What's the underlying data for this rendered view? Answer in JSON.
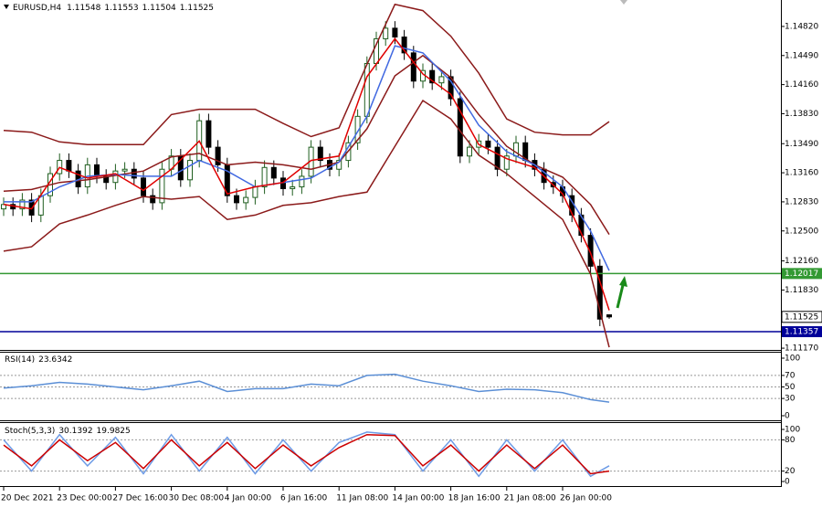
{
  "chart_data": [
    {
      "type": "candlestick",
      "title": "EURUSD,H4",
      "categories": [
        "20 Dec 2021",
        null,
        null,
        null,
        null,
        null,
        "23 Dec 00:00",
        null,
        null,
        null,
        null,
        null,
        "27 Dec 16:00",
        null,
        null,
        null,
        null,
        null,
        "30 Dec 08:00",
        null,
        null,
        null,
        null,
        null,
        "4 Jan 00:00",
        null,
        null,
        null,
        null,
        null,
        "6 Jan 16:00",
        null,
        null,
        null,
        null,
        null,
        "11 Jan 08:00",
        null,
        null,
        null,
        null,
        null,
        "14 Jan 00:00",
        null,
        null,
        null,
        null,
        null,
        "18 Jan 16:00",
        null,
        null,
        null,
        null,
        null,
        "21 Jan 08:00",
        null,
        null,
        null,
        null,
        null,
        "26 Jan 00:00",
        null,
        null,
        null,
        null,
        null
      ],
      "open": [
        1.1275,
        1.128,
        1.1275,
        1.1285,
        1.1268,
        1.129,
        1.1315,
        1.133,
        1.1318,
        1.13,
        1.1325,
        1.1312,
        1.1305,
        1.1318,
        1.132,
        1.131,
        1.129,
        1.1282,
        1.132,
        1.1335,
        1.1308,
        1.133,
        1.1375,
        1.1345,
        1.1325,
        1.129,
        1.1282,
        1.1288,
        1.13,
        1.1322,
        1.131,
        1.1298,
        1.13,
        1.1312,
        1.1345,
        1.133,
        1.132,
        1.133,
        1.135,
        1.138,
        1.144,
        1.1468,
        1.148,
        1.147,
        1.1452,
        1.142,
        1.1432,
        1.1418,
        1.1425,
        1.14,
        1.1335,
        1.1345,
        1.1352,
        1.1345,
        1.132,
        1.1335,
        1.135,
        1.133,
        1.132,
        1.1305,
        1.13,
        1.129,
        1.1268,
        1.1245,
        1.121,
        1.11548
      ],
      "high": [
        1.1288,
        1.1288,
        1.1293,
        1.1293,
        1.1298,
        1.1323,
        1.1338,
        1.1338,
        1.1326,
        1.1333,
        1.1333,
        1.132,
        1.1326,
        1.1328,
        1.1328,
        1.1318,
        1.1298,
        1.1328,
        1.1343,
        1.1343,
        1.1338,
        1.1383,
        1.1383,
        1.1353,
        1.1333,
        1.1298,
        1.1296,
        1.1308,
        1.133,
        1.133,
        1.1318,
        1.1308,
        1.132,
        1.1353,
        1.1353,
        1.1338,
        1.1338,
        1.1358,
        1.1388,
        1.1448,
        1.1476,
        1.1488,
        1.1488,
        1.1478,
        1.146,
        1.144,
        1.144,
        1.1433,
        1.1433,
        1.1408,
        1.1353,
        1.136,
        1.136,
        1.1353,
        1.1343,
        1.1358,
        1.1358,
        1.1338,
        1.1328,
        1.1313,
        1.1308,
        1.1298,
        1.1276,
        1.1253,
        1.1218,
        1.11553
      ],
      "low": [
        1.1267,
        1.1267,
        1.1267,
        1.126,
        1.126,
        1.1282,
        1.1307,
        1.131,
        1.1292,
        1.1292,
        1.1304,
        1.1297,
        1.1297,
        1.131,
        1.1302,
        1.1282,
        1.1274,
        1.1274,
        1.1312,
        1.13,
        1.13,
        1.1322,
        1.1337,
        1.1317,
        1.1282,
        1.1274,
        1.1274,
        1.128,
        1.1292,
        1.1302,
        1.129,
        1.129,
        1.1292,
        1.1304,
        1.1322,
        1.1312,
        1.1312,
        1.1322,
        1.1342,
        1.1372,
        1.1432,
        1.146,
        1.1462,
        1.1444,
        1.1412,
        1.1412,
        1.141,
        1.141,
        1.1392,
        1.1327,
        1.1327,
        1.1337,
        1.1337,
        1.1312,
        1.1312,
        1.1327,
        1.1322,
        1.1312,
        1.1297,
        1.1292,
        1.1282,
        1.126,
        1.1237,
        1.1202,
        1.1142,
        1.11504
      ],
      "close": [
        1.128,
        1.1275,
        1.1285,
        1.1268,
        1.129,
        1.1315,
        1.133,
        1.1318,
        1.13,
        1.1325,
        1.1312,
        1.1305,
        1.1318,
        1.132,
        1.131,
        1.129,
        1.1282,
        1.132,
        1.1335,
        1.1308,
        1.133,
        1.1375,
        1.1345,
        1.1325,
        1.129,
        1.1282,
        1.1288,
        1.13,
        1.1322,
        1.131,
        1.1298,
        1.13,
        1.1312,
        1.1345,
        1.133,
        1.132,
        1.133,
        1.135,
        1.138,
        1.144,
        1.1468,
        1.148,
        1.147,
        1.1452,
        1.142,
        1.1432,
        1.1418,
        1.1425,
        1.14,
        1.1335,
        1.1345,
        1.1352,
        1.1345,
        1.132,
        1.1335,
        1.135,
        1.133,
        1.132,
        1.1305,
        1.13,
        1.129,
        1.1268,
        1.1245,
        1.121,
        1.115,
        1.11525
      ],
      "up_color": "#1f5e1f",
      "down_color": "#000000",
      "series": [
        {
          "color": "#8b1a1a",
          "x": [
            0,
            3,
            6,
            9,
            12,
            15,
            18,
            21,
            24,
            27,
            30,
            33,
            36,
            39,
            42,
            45,
            48,
            51,
            54,
            57,
            60,
            63,
            65
          ],
          "values": [
            1.1364,
            1.1362,
            1.1351,
            1.1348,
            1.1348,
            1.1348,
            1.1382,
            1.1388,
            1.1388,
            1.1388,
            1.1372,
            1.1357,
            1.1367,
            1.1439,
            1.1507,
            1.15,
            1.1471,
            1.1429,
            1.1377,
            1.1362,
            1.1359,
            1.1359,
            1.1374
          ]
        },
        {
          "color": "#8b1a1a",
          "x": [
            0,
            3,
            6,
            9,
            12,
            15,
            18,
            21,
            24,
            27,
            30,
            33,
            36,
            39,
            42,
            45,
            48,
            51,
            54,
            57,
            60,
            63,
            65
          ],
          "values": [
            1.1295,
            1.1297,
            1.1305,
            1.1308,
            1.1313,
            1.1318,
            1.1334,
            1.1338,
            1.1325,
            1.1328,
            1.1325,
            1.132,
            1.1328,
            1.1366,
            1.1426,
            1.1449,
            1.1424,
            1.1382,
            1.1346,
            1.1325,
            1.1311,
            1.128,
            1.1246
          ]
        },
        {
          "color": "#8b1a1a",
          "x": [
            0,
            3,
            6,
            9,
            12,
            15,
            18,
            21,
            24,
            27,
            30,
            33,
            36,
            39,
            42,
            45,
            48,
            51,
            54,
            57,
            60,
            63,
            65
          ],
          "values": [
            1.1227,
            1.1232,
            1.1258,
            1.1268,
            1.1279,
            1.1289,
            1.1286,
            1.1289,
            1.1263,
            1.1268,
            1.1279,
            1.1282,
            1.1289,
            1.1294,
            1.1346,
            1.1398,
            1.1377,
            1.1336,
            1.1315,
            1.1289,
            1.1263,
            1.1201,
            1.1118
          ]
        },
        {
          "color": "#4169e1",
          "x": [
            0,
            3,
            6,
            9,
            12,
            15,
            18,
            21,
            24,
            27,
            30,
            33,
            36,
            39,
            42,
            45,
            48,
            51,
            54,
            57,
            60,
            63,
            65
          ],
          "values": [
            1.1283,
            1.1283,
            1.13,
            1.1312,
            1.1314,
            1.1312,
            1.1312,
            1.133,
            1.1318,
            1.13,
            1.1305,
            1.131,
            1.1328,
            1.138,
            1.146,
            1.1452,
            1.142,
            1.137,
            1.134,
            1.1325,
            1.13,
            1.125,
            1.1205
          ]
        },
        {
          "color": "#e00000",
          "x": [
            0,
            3,
            6,
            9,
            12,
            15,
            18,
            21,
            24,
            27,
            30,
            33,
            36,
            39,
            42,
            45,
            48,
            51,
            54,
            57,
            60,
            63,
            65
          ],
          "values": [
            1.128,
            1.1275,
            1.1322,
            1.131,
            1.1315,
            1.1296,
            1.132,
            1.1352,
            1.1292,
            1.13,
            1.1305,
            1.133,
            1.1335,
            1.1425,
            1.1468,
            1.1428,
            1.1405,
            1.1348,
            1.1332,
            1.1322,
            1.1292,
            1.1225,
            1.116
          ]
        }
      ],
      "levels": [
        {
          "value": 1.12017,
          "color": "#339933"
        },
        {
          "value": 1.11357,
          "color": "#000099"
        }
      ],
      "ylim": [
        1.1115,
        1.1512
      ],
      "yticks": [
        {
          "value": 1.1482,
          "label": "1.14820"
        },
        {
          "value": 1.1449,
          "label": "1.14490"
        },
        {
          "value": 1.1416,
          "label": "1.14160"
        },
        {
          "value": 1.1383,
          "label": "1.13830"
        },
        {
          "value": 1.1349,
          "label": "1.13490"
        },
        {
          "value": 1.1316,
          "label": "1.13160"
        },
        {
          "value": 1.1283,
          "label": "1.12830"
        },
        {
          "value": 1.125,
          "label": "1.12500"
        },
        {
          "value": 1.1216,
          "label": "1.12160"
        },
        {
          "value": 1.1183,
          "label": "1.11830"
        },
        {
          "value": 1.1117,
          "label": "1.11170"
        }
      ]
    },
    {
      "type": "line",
      "title": "RSI(14)",
      "readouts": [
        23.6342
      ],
      "series": [
        {
          "color": "#5b8fd6",
          "x": [
            0,
            3,
            6,
            9,
            12,
            15,
            18,
            21,
            24,
            27,
            30,
            33,
            36,
            39,
            42,
            45,
            48,
            51,
            54,
            57,
            60,
            63,
            65
          ],
          "values": [
            48,
            52,
            58,
            55,
            50,
            45,
            52,
            60,
            42,
            47,
            47,
            55,
            52,
            70,
            72,
            60,
            52,
            42,
            46,
            45,
            40,
            28,
            23.6342
          ]
        }
      ],
      "ylim": [
        0,
        100
      ],
      "yticks": [
        100,
        70,
        50,
        30,
        0
      ]
    },
    {
      "type": "line",
      "title": "Stoch(5,3,3)",
      "readouts": [
        30.1392,
        19.9825
      ],
      "series": [
        {
          "color": "#6d9be6",
          "x": [
            0,
            3,
            6,
            9,
            12,
            15,
            18,
            21,
            24,
            27,
            30,
            33,
            36,
            39,
            42,
            45,
            48,
            51,
            54,
            57,
            60,
            63,
            65
          ],
          "values": [
            80,
            20,
            90,
            30,
            85,
            15,
            90,
            20,
            85,
            15,
            80,
            20,
            75,
            95,
            90,
            20,
            80,
            10,
            80,
            20,
            80,
            10,
            30.1392
          ]
        },
        {
          "color": "#cc0000",
          "x": [
            0,
            3,
            6,
            9,
            12,
            15,
            18,
            21,
            24,
            27,
            30,
            33,
            36,
            39,
            42,
            45,
            48,
            51,
            54,
            57,
            60,
            63,
            65
          ],
          "values": [
            70,
            30,
            80,
            40,
            75,
            25,
            80,
            30,
            75,
            25,
            70,
            30,
            65,
            90,
            88,
            30,
            70,
            20,
            70,
            25,
            70,
            15,
            19.9825
          ]
        }
      ],
      "ylim": [
        0,
        100
      ],
      "yticks": [
        100,
        80,
        20,
        0
      ]
    }
  ]
}
